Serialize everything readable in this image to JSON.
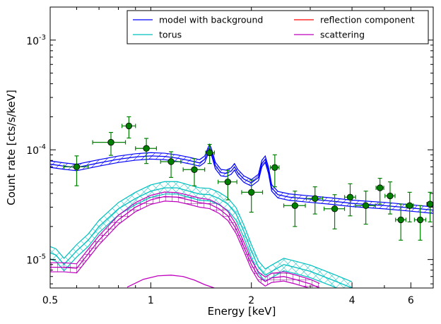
{
  "chart_data": {
    "type": "scatter",
    "title": "",
    "xlabel": "Energy [keV]",
    "ylabel": "Count rate [cts/s/keV]",
    "xscale": "log",
    "yscale": "log",
    "xlim": [
      0.5,
      7.0
    ],
    "ylim": [
      5.5e-06,
      0.002
    ],
    "x_ticks": [
      {
        "value": 0.5,
        "label": "0.5"
      },
      {
        "value": 1,
        "label": "1"
      },
      {
        "value": 2,
        "label": "2"
      },
      {
        "value": 4,
        "label": "4"
      },
      {
        "value": 6,
        "label": "6"
      }
    ],
    "y_ticks": [
      {
        "value": 1e-05,
        "base": "10",
        "exp": "-5"
      },
      {
        "value": 0.0001,
        "base": "10",
        "exp": "-4"
      },
      {
        "value": 0.001,
        "base": "10",
        "exp": "-3"
      }
    ],
    "legend": {
      "placement": "top-right",
      "columns": 2,
      "entries": [
        {
          "label": "model with background",
          "color": "#0000ff"
        },
        {
          "label": "reflection component",
          "color": "#ff0000"
        },
        {
          "label": "torus",
          "color": "#00bfbf"
        },
        {
          "label": "scattering",
          "color": "#bf00bf"
        }
      ]
    },
    "data_points": [
      {
        "x": 0.6,
        "y": 7e-05,
        "xerr": [
          0.55,
          0.65
        ],
        "yerr": [
          4.7e-05,
          8.8e-05
        ]
      },
      {
        "x": 0.76,
        "y": 0.000117,
        "xerr": [
          0.67,
          0.84
        ],
        "yerr": [
          8.9e-05,
          0.000144
        ]
      },
      {
        "x": 0.86,
        "y": 0.000165,
        "xerr": [
          0.82,
          0.9
        ],
        "yerr": [
          0.000128,
          0.0002
        ]
      },
      {
        "x": 0.97,
        "y": 0.000103,
        "xerr": [
          0.9,
          1.04
        ],
        "yerr": [
          7.5e-05,
          0.000127
        ]
      },
      {
        "x": 1.15,
        "y": 7.8e-05,
        "xerr": [
          1.07,
          1.23
        ],
        "yerr": [
          5.6e-05,
          9.6e-05
        ]
      },
      {
        "x": 1.35,
        "y": 6.6e-05,
        "xerr": [
          1.25,
          1.45
        ],
        "yerr": [
          4.7e-05,
          8.3e-05
        ]
      },
      {
        "x": 1.5,
        "y": 9.4e-05,
        "xerr": [
          1.46,
          1.55
        ],
        "yerr": [
          7.5e-05,
          0.000112
        ]
      },
      {
        "x": 1.7,
        "y": 5.1e-05,
        "xerr": [
          1.59,
          1.81
        ],
        "yerr": [
          3.5e-05,
          6.5e-05
        ]
      },
      {
        "x": 2.0,
        "y": 4.1e-05,
        "xerr": [
          1.87,
          2.16
        ],
        "yerr": [
          2.7e-05,
          5.3e-05
        ]
      },
      {
        "x": 2.35,
        "y": 6.9e-05,
        "xerr": [
          2.28,
          2.42
        ],
        "yerr": [
          4.6e-05,
          9e-05
        ]
      },
      {
        "x": 2.7,
        "y": 3.1e-05,
        "xerr": [
          2.5,
          2.9
        ],
        "yerr": [
          2e-05,
          4.2e-05
        ]
      },
      {
        "x": 3.1,
        "y": 3.6e-05,
        "xerr": [
          2.92,
          3.27
        ],
        "yerr": [
          2.6e-05,
          4.6e-05
        ]
      },
      {
        "x": 3.55,
        "y": 2.9e-05,
        "xerr": [
          3.3,
          3.8
        ],
        "yerr": [
          1.9e-05,
          3.9e-05
        ]
      },
      {
        "x": 3.95,
        "y": 3.7e-05,
        "xerr": [
          3.8,
          4.1
        ],
        "yerr": [
          2.5e-05,
          4.9e-05
        ]
      },
      {
        "x": 4.4,
        "y": 3.1e-05,
        "xerr": [
          4.1,
          4.7
        ],
        "yerr": [
          2.1e-05,
          4.2e-05
        ]
      },
      {
        "x": 4.85,
        "y": 4.5e-05,
        "xerr": [
          4.72,
          4.98
        ],
        "yerr": [
          3.2e-05,
          5.5e-05
        ]
      },
      {
        "x": 5.2,
        "y": 3.8e-05,
        "xerr": [
          5.02,
          5.38
        ],
        "yerr": [
          2.6e-05,
          5.1e-05
        ]
      },
      {
        "x": 5.6,
        "y": 2.3e-05,
        "xerr": [
          5.4,
          5.8
        ],
        "yerr": [
          1.5e-05,
          3.2e-05
        ]
      },
      {
        "x": 5.95,
        "y": 3.1e-05,
        "xerr": [
          5.8,
          6.1
        ],
        "yerr": [
          2.2e-05,
          4.1e-05
        ]
      },
      {
        "x": 6.4,
        "y": 2.3e-05,
        "xerr": [
          6.15,
          6.65
        ],
        "yerr": [
          1.5e-05,
          3.1e-05
        ]
      },
      {
        "x": 6.85,
        "y": 3.2e-05,
        "xerr": [
          6.7,
          7.0
        ],
        "yerr": [
          2.2e-05,
          4.1e-05
        ]
      }
    ],
    "series": [
      {
        "name": "model with background",
        "color": "#0000ff",
        "band_style": "diagonal-hatch",
        "x": [
          0.5,
          0.55,
          0.6,
          0.7,
          0.8,
          0.9,
          1.0,
          1.1,
          1.2,
          1.3,
          1.4,
          1.45,
          1.48,
          1.5,
          1.52,
          1.56,
          1.62,
          1.68,
          1.74,
          1.78,
          1.82,
          1.9,
          2.0,
          2.1,
          2.15,
          2.2,
          2.25,
          2.3,
          2.4,
          2.6,
          3.0,
          3.5,
          4.0,
          5.0,
          6.0,
          7.0
        ],
        "mid": [
          7.4e-05,
          7.1e-05,
          6.9e-05,
          7.6e-05,
          8.2e-05,
          8.6e-05,
          8.8e-05,
          8.7e-05,
          8.4e-05,
          8e-05,
          7.6e-05,
          8.2e-05,
          9.6e-05,
          0.000105,
          9.5e-05,
          7.2e-05,
          6.2e-05,
          6.1e-05,
          6.4e-05,
          7e-05,
          6.2e-05,
          5.4e-05,
          5e-05,
          5.6e-05,
          7.5e-05,
          8.2e-05,
          6.5e-05,
          4.5e-05,
          3.9e-05,
          3.7e-05,
          3.55e-05,
          3.4e-05,
          3.25e-05,
          3.1e-05,
          2.95e-05,
          2.82e-05
        ],
        "rel_err": 0.07
      },
      {
        "name": "torus",
        "color": "#00bfbf",
        "band_style": "cross-hatch",
        "x": [
          0.5,
          0.52,
          0.55,
          0.6,
          0.65,
          0.7,
          0.8,
          0.9,
          1.0,
          1.1,
          1.2,
          1.3,
          1.4,
          1.5,
          1.6,
          1.7,
          1.8,
          1.9,
          2.0,
          2.1,
          2.2,
          2.3,
          2.5,
          2.7,
          3.0,
          3.5,
          4.0
        ],
        "mid": [
          1.15e-05,
          1.1e-05,
          9e-06,
          1.2e-05,
          1.5e-05,
          2e-05,
          2.9e-05,
          3.6e-05,
          4.2e-05,
          4.5e-05,
          4.5e-05,
          4.2e-05,
          3.95e-05,
          3.9e-05,
          3.6e-05,
          3.2e-05,
          2.6e-05,
          1.8e-05,
          1.2e-05,
          8.5e-06,
          7.2e-06,
          7.8e-06,
          9e-06,
          8.5e-06,
          7.8e-06,
          6.5e-06,
          5.5e-06
        ],
        "rel_err": 0.14
      },
      {
        "name": "scattering",
        "color": "#bf00bf",
        "band_style": "grid",
        "x": [
          0.5,
          0.55,
          0.6,
          0.7,
          0.8,
          0.9,
          1.0,
          1.1,
          1.2,
          1.3,
          1.4,
          1.5,
          1.6,
          1.7,
          1.8,
          1.9,
          2.0,
          2.1,
          2.2,
          2.3,
          2.5,
          2.7,
          3.0,
          3.2
        ],
        "mid": [
          8.5e-06,
          8.5e-06,
          8.3e-06,
          1.5e-05,
          2.3e-05,
          3e-05,
          3.5e-05,
          3.75e-05,
          3.7e-05,
          3.5e-05,
          3.3e-05,
          3.2e-05,
          2.9e-05,
          2.5e-05,
          1.9e-05,
          1.3e-05,
          9e-06,
          7e-06,
          6.3e-06,
          6.8e-06,
          7e-06,
          6.6e-06,
          6e-06,
          5.5e-06
        ],
        "rel_err": 0.1
      },
      {
        "name": "reflection component",
        "color": "#ff0000",
        "band_style": "none",
        "x": [],
        "mid": [],
        "rel_err": 0
      },
      {
        "name": "scattering (lower curve)",
        "color": "#bf00bf",
        "band_style": "none",
        "x": [
          0.85,
          0.95,
          1.05,
          1.15,
          1.25,
          1.35,
          1.45,
          1.55
        ],
        "mid": [
          5.6e-06,
          6.6e-06,
          7.1e-06,
          7.2e-06,
          7e-06,
          6.5e-06,
          5.9e-06,
          5.5e-06
        ],
        "rel_err": 0
      }
    ]
  }
}
